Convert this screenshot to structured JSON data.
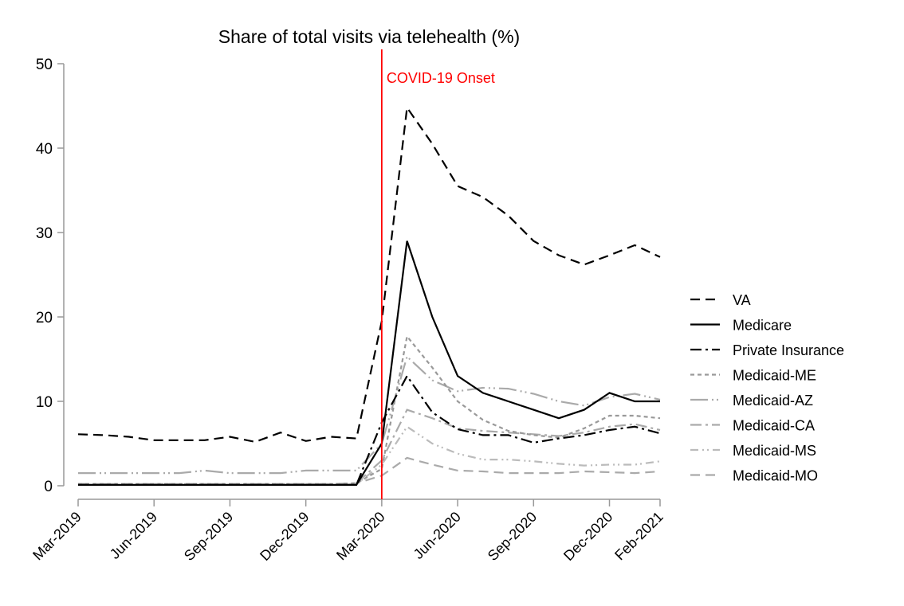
{
  "chart_data": {
    "type": "line",
    "title": "Share of total visits via telehealth (%)",
    "xlabel": "",
    "ylabel": "",
    "ylim": [
      0,
      50
    ],
    "yticks": [
      0,
      10,
      20,
      30,
      40,
      50
    ],
    "grid": false,
    "legend_placement": "right",
    "x": [
      "Mar-2019",
      "Apr-2019",
      "May-2019",
      "Jun-2019",
      "Jul-2019",
      "Aug-2019",
      "Sep-2019",
      "Oct-2019",
      "Nov-2019",
      "Dec-2019",
      "Jan-2020",
      "Feb-2020",
      "Mar-2020",
      "Apr-2020",
      "May-2020",
      "Jun-2020",
      "Jul-2020",
      "Aug-2020",
      "Sep-2020",
      "Oct-2020",
      "Nov-2020",
      "Dec-2020",
      "Jan-2021",
      "Feb-2021"
    ],
    "xtick_labels": [
      "Mar-2019",
      "Jun-2019",
      "Sep-2019",
      "Dec-2019",
      "Mar-2020",
      "Jun-2020",
      "Sep-2020",
      "Dec-2020",
      "Feb-2021"
    ],
    "annotation": {
      "x": "Mar-2020",
      "label": "COVID-19 Onset",
      "color": "#ff0000"
    },
    "series": [
      {
        "name": "VA",
        "color": "#000000",
        "dash": "long-dash",
        "values": [
          6.1,
          6.0,
          5.8,
          5.4,
          5.4,
          5.4,
          5.8,
          5.2,
          6.3,
          5.3,
          5.8,
          5.6,
          19.5,
          44.8,
          40.5,
          35.5,
          34.2,
          32.0,
          29.0,
          27.3,
          26.2,
          27.3,
          28.5,
          27.1
        ]
      },
      {
        "name": "Medicare",
        "color": "#000000",
        "dash": "solid",
        "values": [
          0.1,
          0.1,
          0.1,
          0.1,
          0.1,
          0.1,
          0.1,
          0.1,
          0.1,
          0.1,
          0.1,
          0.1,
          5.0,
          29.0,
          20.0,
          13.0,
          11.0,
          10.0,
          9.0,
          8.0,
          9.0,
          11.0,
          10.0,
          10.0
        ]
      },
      {
        "name": "Private Insurance",
        "color": "#000000",
        "dash": "dash-dot",
        "values": [
          0.1,
          0.1,
          0.1,
          0.1,
          0.1,
          0.1,
          0.1,
          0.1,
          0.1,
          0.1,
          0.1,
          0.1,
          7.5,
          13.0,
          8.7,
          6.7,
          6.0,
          6.0,
          5.1,
          5.6,
          6.0,
          6.6,
          7.0,
          6.2
        ]
      },
      {
        "name": "Medicaid-ME",
        "color": "#999999",
        "dash": "short-dash",
        "values": [
          0.2,
          0.2,
          0.2,
          0.2,
          0.2,
          0.2,
          0.2,
          0.2,
          0.2,
          0.2,
          0.2,
          0.3,
          2.0,
          17.7,
          14.0,
          10.0,
          7.8,
          6.5,
          6.0,
          5.7,
          6.8,
          8.3,
          8.3,
          8.0
        ]
      },
      {
        "name": "Medicaid-AZ",
        "color": "#aaaaaa",
        "dash": "long-dash-dot",
        "values": [
          1.5,
          1.5,
          1.5,
          1.5,
          1.5,
          1.8,
          1.5,
          1.5,
          1.5,
          1.8,
          1.8,
          1.8,
          5.0,
          15.3,
          12.5,
          11.2,
          11.6,
          11.5,
          10.9,
          10.0,
          9.5,
          10.5,
          10.9,
          10.2
        ]
      },
      {
        "name": "Medicaid-CA",
        "color": "#aaaaaa",
        "dash": "dash-dot",
        "values": [
          0.2,
          0.2,
          0.2,
          0.2,
          0.2,
          0.2,
          0.2,
          0.2,
          0.2,
          0.2,
          0.2,
          0.3,
          3.0,
          9.0,
          8.0,
          6.8,
          6.5,
          6.3,
          6.1,
          5.9,
          6.3,
          7.0,
          7.3,
          6.6
        ]
      },
      {
        "name": "Medicaid-MS",
        "color": "#bbbbbb",
        "dash": "dash-dot-dot",
        "values": [
          0.1,
          0.1,
          0.1,
          0.1,
          0.1,
          0.1,
          0.1,
          0.1,
          0.1,
          0.1,
          0.1,
          0.2,
          2.5,
          7.0,
          5.0,
          3.8,
          3.1,
          3.1,
          2.9,
          2.6,
          2.4,
          2.5,
          2.5,
          2.9
        ]
      },
      {
        "name": "Medicaid-MO",
        "color": "#aaaaaa",
        "dash": "long-dash",
        "values": [
          0.2,
          0.2,
          0.2,
          0.2,
          0.2,
          0.2,
          0.2,
          0.2,
          0.2,
          0.2,
          0.2,
          0.3,
          1.2,
          3.3,
          2.5,
          1.8,
          1.7,
          1.5,
          1.5,
          1.5,
          1.7,
          1.6,
          1.5,
          1.7
        ]
      }
    ]
  }
}
